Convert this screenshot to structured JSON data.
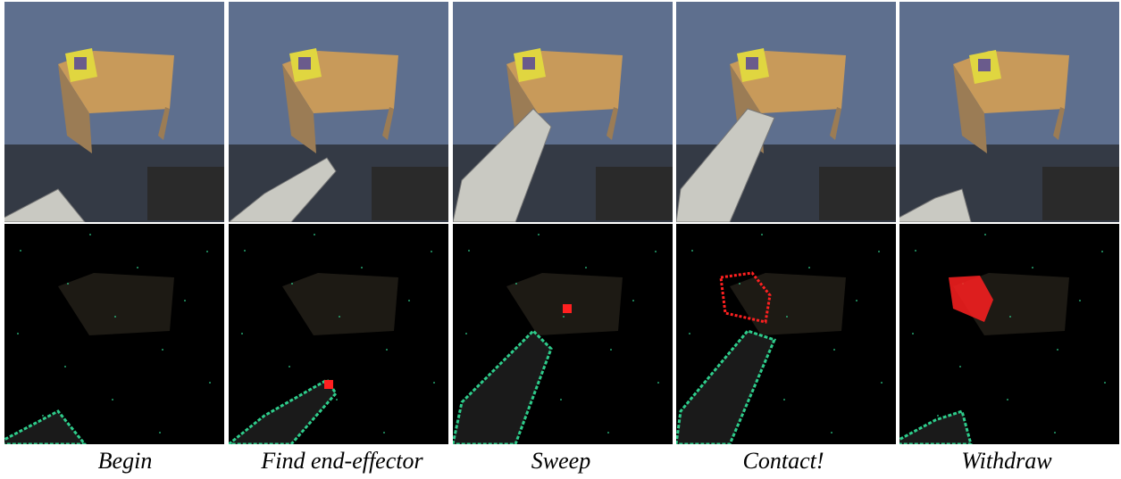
{
  "frames": [
    {
      "caption": "Begin",
      "arm_stage": "begin",
      "contact_stage": "none",
      "has_target": false
    },
    {
      "caption": "Find end-effector",
      "arm_stage": "find",
      "contact_stage": "none",
      "has_target": true
    },
    {
      "caption": "Sweep",
      "arm_stage": "sweep",
      "contact_stage": "none",
      "has_target": true
    },
    {
      "caption": "Contact!",
      "arm_stage": "contact",
      "contact_stage": "touch",
      "has_target": false
    },
    {
      "caption": "Withdraw",
      "arm_stage": "withdraw",
      "contact_stage": "moved",
      "has_target": false
    }
  ],
  "colors": {
    "floor": "#5e6f8e",
    "table": "#c89a5a",
    "box": "#e0d640",
    "detection": "#2ecc8b",
    "contact": "#ff2020",
    "background_dark": "#000000"
  }
}
